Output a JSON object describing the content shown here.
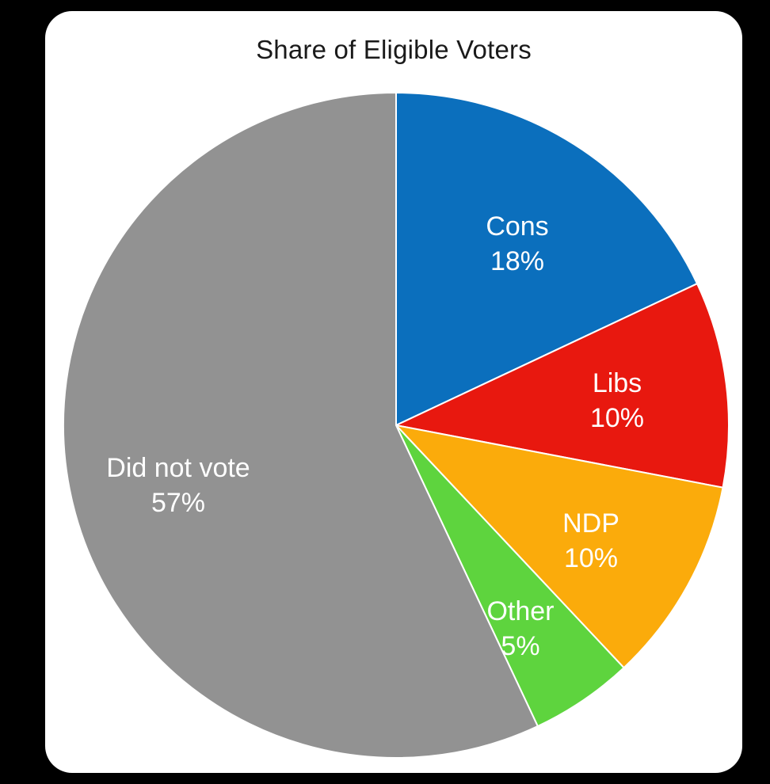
{
  "chart_data": {
    "type": "pie",
    "title": "Share of Eligible Voters",
    "slices": [
      {
        "label": "Cons",
        "value": 18,
        "display": "18%",
        "color": "#0b6fbd"
      },
      {
        "label": "Libs",
        "value": 10,
        "display": "10%",
        "color": "#e8180f"
      },
      {
        "label": "NDP",
        "value": 10,
        "display": "10%",
        "color": "#fbab0b"
      },
      {
        "label": "Other",
        "value": 5,
        "display": "5%",
        "color": "#5ed43e"
      },
      {
        "label": "Did not vote",
        "value": 57,
        "display": "57%",
        "color": "#929292"
      }
    ],
    "start_angle_deg": 0,
    "direction": "clockwise",
    "legend": "none",
    "labels": "inside"
  }
}
